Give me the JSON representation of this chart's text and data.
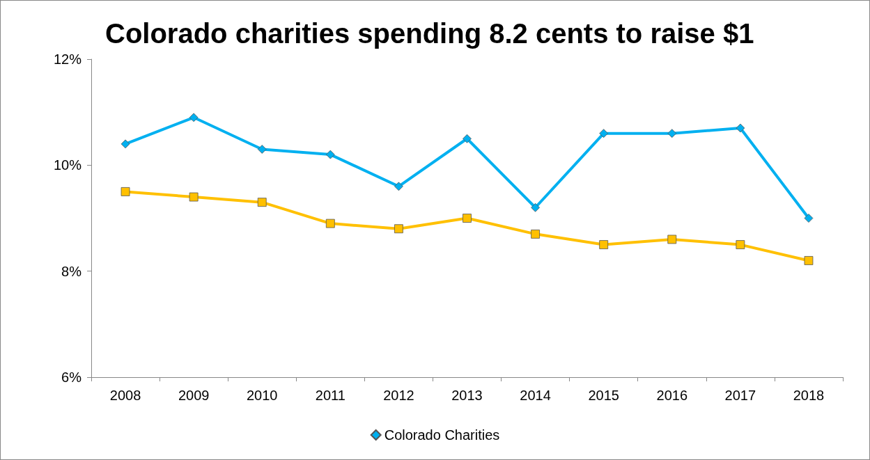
{
  "chart_data": {
    "type": "line",
    "title": "Colorado charities spending 8.2 cents to raise $1",
    "categories": [
      "2008",
      "2009",
      "2010",
      "2011",
      "2012",
      "2013",
      "2014",
      "2015",
      "2016",
      "2017",
      "2018"
    ],
    "series": [
      {
        "name": "Colorado Charities",
        "color": "#00b0f0",
        "marker": "diamond",
        "values": [
          10.4,
          10.9,
          10.3,
          10.2,
          9.6,
          10.5,
          9.2,
          10.6,
          10.6,
          10.7,
          9.0
        ]
      },
      {
        "color": "#ffc000",
        "marker": "square",
        "values": [
          9.5,
          9.4,
          9.3,
          8.9,
          8.8,
          9.0,
          8.7,
          8.5,
          8.6,
          8.5,
          8.2
        ]
      }
    ],
    "ylim": [
      6,
      12
    ],
    "yticks": [
      {
        "value": 6,
        "label": "6%"
      },
      {
        "value": 8,
        "label": "8%"
      },
      {
        "value": 10,
        "label": "10%"
      },
      {
        "value": 12,
        "label": "12%"
      }
    ],
    "grid": false,
    "legend": "bottom",
    "line_style": "solid"
  }
}
